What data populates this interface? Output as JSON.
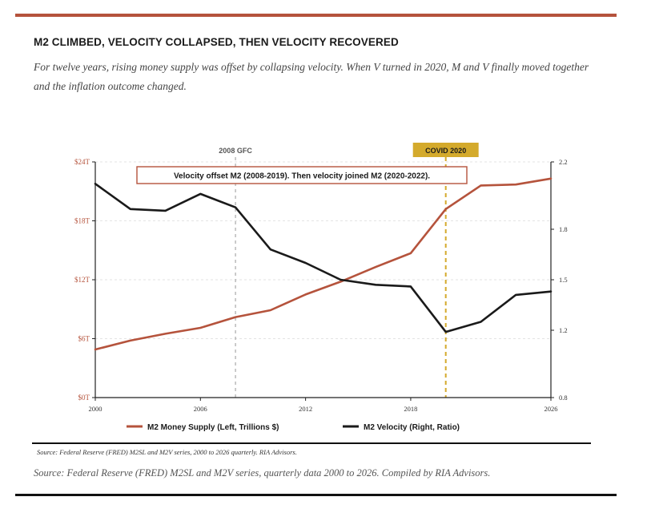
{
  "header": {
    "title": "M2 CLIMBED, VELOCITY COLLAPSED, THEN VELOCITY RECOVERED",
    "subtitle": "For twelve years, rising money supply was offset by collapsing velocity. When V turned in 2020, M and V finally moved together and the inflation outcome changed."
  },
  "colors": {
    "accent": "#b5533c",
    "velocity": "#1a1a1a",
    "covid": "#d4aa2c",
    "gfc": "#a8a8a8",
    "rule": "#b5533c"
  },
  "chart_data": {
    "type": "line",
    "x_ticks": [
      2000,
      2006,
      2012,
      2018,
      2026
    ],
    "xlim": [
      2000,
      2026
    ],
    "left_axis": {
      "ylim": [
        0,
        24
      ],
      "ticks": [
        0,
        6,
        12,
        18,
        24
      ],
      "tick_labels": [
        "$0T",
        "$6T",
        "$12T",
        "$18T",
        "$24T"
      ]
    },
    "right_axis": {
      "ylim": [
        0.8,
        2.2
      ],
      "ticks": [
        0.8,
        1.2,
        1.5,
        1.8,
        2.2
      ],
      "tick_labels": [
        "0.8",
        "1.2",
        "1.5",
        "1.8",
        "2.2"
      ]
    },
    "grid": true,
    "legend_position": "bottom",
    "series": [
      {
        "name": "M2 Money Supply (Left, Trillions $)",
        "axis": "left",
        "color": "#b5533c",
        "x": [
          2000,
          2002,
          2004,
          2006,
          2008,
          2010,
          2012,
          2014,
          2016,
          2018,
          2020,
          2022,
          2024,
          2026
        ],
        "values": [
          4.9,
          5.8,
          6.5,
          7.1,
          8.2,
          8.9,
          10.5,
          11.8,
          13.3,
          14.7,
          19.2,
          21.6,
          21.7,
          22.3
        ]
      },
      {
        "name": "M2 Velocity (Right, Ratio)",
        "axis": "right",
        "color": "#1a1a1a",
        "x": [
          2000,
          2002,
          2004,
          2006,
          2008,
          2010,
          2012,
          2014,
          2016,
          2018,
          2020,
          2022,
          2024,
          2026
        ],
        "values": [
          2.07,
          1.92,
          1.91,
          2.01,
          1.93,
          1.68,
          1.6,
          1.5,
          1.47,
          1.46,
          1.19,
          1.25,
          1.41,
          1.43
        ]
      }
    ],
    "annotations": [
      {
        "x": 2008,
        "label": "2008 GFC",
        "style": "dashed-gray"
      },
      {
        "x": 2020,
        "label": "COVID 2020",
        "style": "dashed-gold"
      }
    ],
    "callout": "Velocity offset M2 (2008-2019). Then velocity joined M2 (2020-2022)."
  },
  "footer": {
    "source_small": "Source: Federal Reserve (FRED) M2SL and M2V series, 2000 to 2026 quarterly. RIA Advisors.",
    "source_large": "Source: Federal Reserve (FRED) M2SL and M2V series, quarterly data 2000 to 2026. Compiled by RIA Advisors."
  }
}
